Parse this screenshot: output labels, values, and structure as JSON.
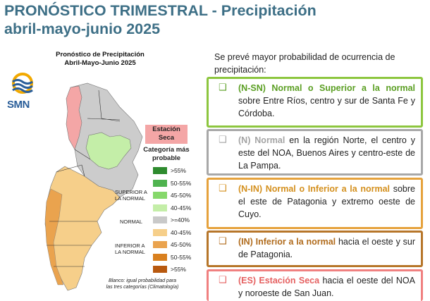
{
  "header": {
    "title_line1": "PRONÓSTICO TRIMESTRAL - Precipitación",
    "title_line2": "abril-mayo-junio 2025"
  },
  "map": {
    "title_line1": "Pronóstico de Precipitación",
    "title_line2": "Abril-Mayo-Junio 2025",
    "logo_text": "SMN",
    "dry_badge_line1": "Estación",
    "dry_badge_line2": "Seca",
    "category_title_line1": "Categoría más",
    "category_title_line2": "probable",
    "legend": [
      {
        "label": ">55%",
        "color": "#2e8b2e"
      },
      {
        "label": "50-55%",
        "color": "#4fb34f"
      },
      {
        "label": "45-50%",
        "color": "#86d86b"
      },
      {
        "label": "40-45%",
        "color": "#c4eea8"
      },
      {
        "label": ">=40%",
        "color": "#c9c9c9"
      },
      {
        "label": "40-45%",
        "color": "#f6cf8a"
      },
      {
        "label": "45-50%",
        "color": "#eaa34e"
      },
      {
        "label": "50-55%",
        "color": "#d9801f"
      },
      {
        "label": ">55%",
        "color": "#b8590f"
      }
    ],
    "group_upper_line1": "SUPERIOR A",
    "group_upper_line2": "LA NORMAL",
    "group_normal": "NORMAL",
    "group_lower_line1": "INFERIOR A",
    "group_lower_line2": "LA NORMAL",
    "note_line1": "Blanco: igual probabilidad para",
    "note_line2": "las tres categorías (Climatología)",
    "colors": {
      "upper": "#c4eea8",
      "normal": "#cccccc",
      "lower": "#f6cf8a",
      "dry": "#f4a6a6"
    }
  },
  "info": {
    "intro": "Se prevé mayor probabilidad de ocurrencia de precipitación:",
    "bullet_symbol": "❑",
    "boxes": [
      {
        "highlight": "(N-SN) Normal o Superior a la normal",
        "text": " sobre Entre Ríos, centro y sur de Santa Fe y Córdoba."
      },
      {
        "highlight": "(N) Normal",
        "text": " en la región Norte, el centro y este del NOA, Buenos Aires y centro-este de La Pampa."
      },
      {
        "highlight": "(N-IN) Normal o Inferior a la normal",
        "text": " sobre el este de Patagonia y extremo oeste de Cuyo."
      },
      {
        "highlight": "(IN) Inferior a la normal",
        "text": " hacia el oeste y sur de Patagonia."
      },
      {
        "highlight": "(ES) Estación Seca",
        "text": " hacia el oeste del NOA y noroeste de San Juan."
      }
    ]
  }
}
